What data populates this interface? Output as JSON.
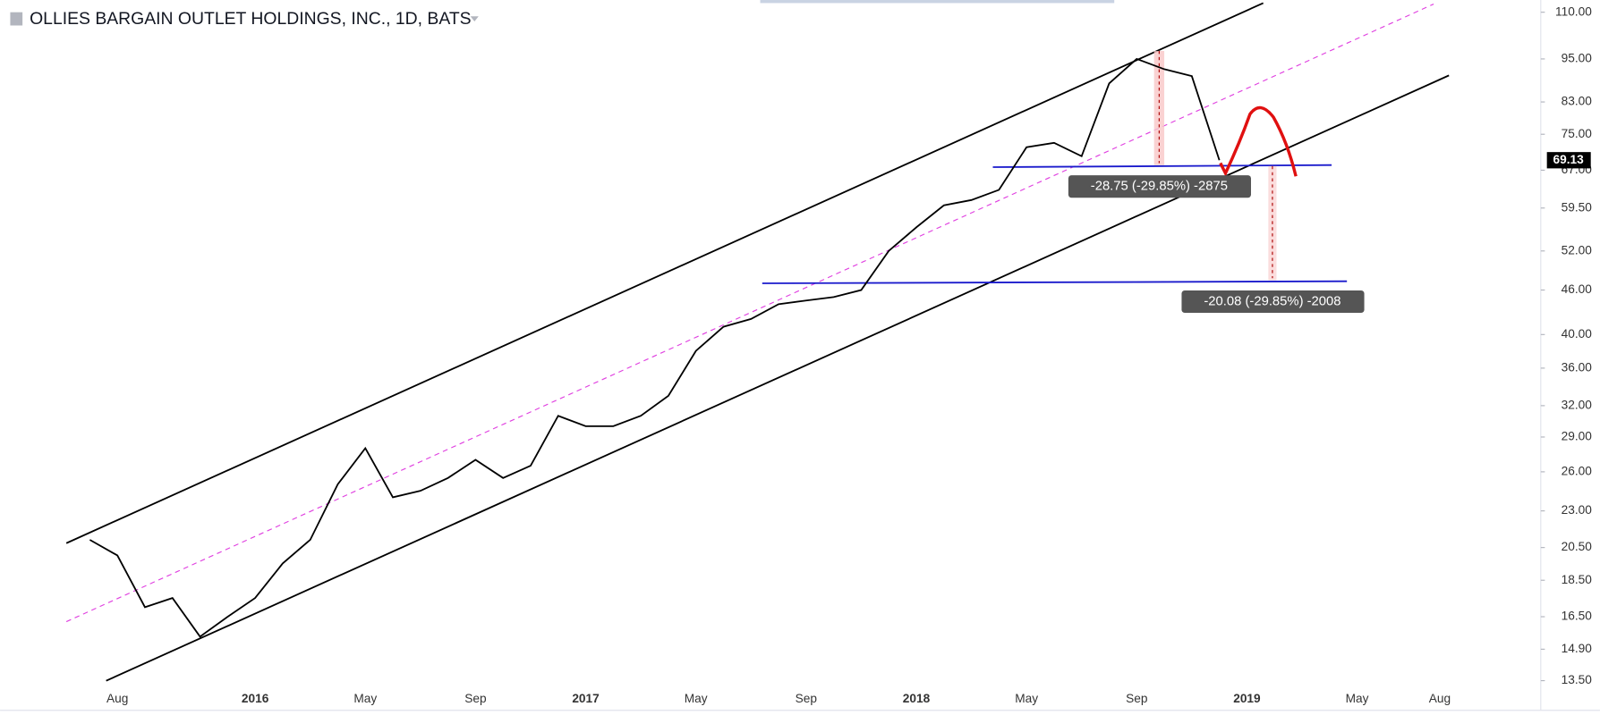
{
  "chart_data": {
    "type": "line",
    "title": "OLLIES BARGAIN OUTLET HOLDINGS, INC., 1D, BATS",
    "log_scale": true,
    "color": "#000000",
    "x": [
      "2015-07",
      "2015-08",
      "2015-09",
      "2015-10",
      "2015-11",
      "2015-12",
      "2016-01",
      "2016-02",
      "2016-03",
      "2016-04",
      "2016-05",
      "2016-06",
      "2016-07",
      "2016-08",
      "2016-09",
      "2016-10",
      "2016-11",
      "2016-12",
      "2017-01",
      "2017-02",
      "2017-03",
      "2017-04",
      "2017-05",
      "2017-06",
      "2017-07",
      "2017-08",
      "2017-09",
      "2017-10",
      "2017-11",
      "2017-12",
      "2018-01",
      "2018-02",
      "2018-03",
      "2018-04",
      "2018-05",
      "2018-06",
      "2018-07",
      "2018-08",
      "2018-09",
      "2018-10",
      "2018-11",
      "2018-12"
    ],
    "values": [
      21,
      20,
      17,
      17.5,
      15.5,
      16.5,
      17.5,
      19.5,
      21,
      25,
      28,
      24,
      24.5,
      25.5,
      27,
      25.5,
      26.5,
      31,
      30,
      30,
      31,
      33,
      38,
      41,
      42,
      44,
      44.5,
      45,
      46,
      52,
      56,
      60,
      61,
      63,
      72,
      73,
      70,
      88,
      95,
      92,
      90,
      69.13
    ],
    "xlim": [
      "2015-04",
      "2019-12"
    ],
    "xticks": [
      {
        "value": "2015-08",
        "label": "Aug"
      },
      {
        "value": "2016-01",
        "label": "2016"
      },
      {
        "value": "2016-05",
        "label": "May"
      },
      {
        "value": "2016-09",
        "label": "Sep"
      },
      {
        "value": "2017-01",
        "label": "2017"
      },
      {
        "value": "2017-05",
        "label": "May"
      },
      {
        "value": "2017-09",
        "label": "Sep"
      },
      {
        "value": "2018-01",
        "label": "2018"
      },
      {
        "value": "2018-05",
        "label": "May"
      },
      {
        "value": "2018-09",
        "label": "Sep"
      },
      {
        "value": "2019-01",
        "label": "2019"
      },
      {
        "value": "2019-05",
        "label": "May"
      },
      {
        "value": "2019-08",
        "label": "Aug"
      }
    ],
    "ylim": [
      12.3,
      114.3
    ],
    "yticks": [
      {
        "value": 110,
        "label": "110.00"
      },
      {
        "value": 95,
        "label": "95.00"
      },
      {
        "value": 83,
        "label": "83.00"
      },
      {
        "value": 75,
        "label": "75.00"
      },
      {
        "value": 67,
        "label": "67.00"
      },
      {
        "value": 59.5,
        "label": "59.50"
      },
      {
        "value": 52,
        "label": "52.00"
      },
      {
        "value": 46,
        "label": "46.00"
      },
      {
        "value": 40,
        "label": "40.00"
      },
      {
        "value": 36,
        "label": "36.00"
      },
      {
        "value": 32,
        "label": "32.00"
      },
      {
        "value": 29,
        "label": "29.00"
      },
      {
        "value": 26,
        "label": "26.00"
      },
      {
        "value": 23,
        "label": "23.00"
      },
      {
        "value": 20.5,
        "label": "20.50"
      },
      {
        "value": 18.5,
        "label": "18.50"
      },
      {
        "value": 16.5,
        "label": "16.50"
      },
      {
        "value": 14.9,
        "label": "14.90"
      },
      {
        "value": 13.5,
        "label": "13.50"
      }
    ],
    "last_price": 69.13,
    "annotations": [
      "-28.75 (-29.85%) -2875",
      "-20.08 (-29.85%) -2008"
    ]
  }
}
